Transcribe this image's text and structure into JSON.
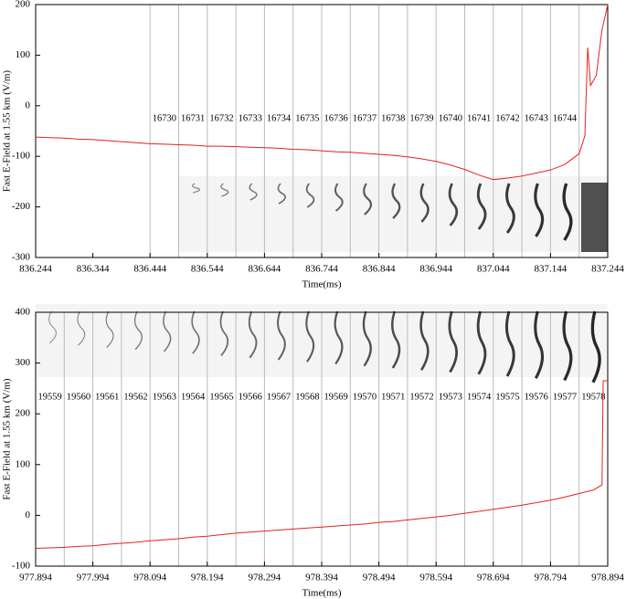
{
  "chart_data": [
    {
      "type": "line",
      "color": "#e8201c",
      "x_label": "Time(ms)",
      "y_label": "Fast E-Field at 1.55 km (V/m)",
      "xlim": [
        836.244,
        837.244
      ],
      "ylim": [
        -300,
        200
      ],
      "xticks": [
        836.244,
        836.344,
        836.444,
        836.544,
        836.644,
        836.744,
        836.844,
        836.944,
        837.044,
        837.144,
        837.244
      ],
      "yticks": [
        -300,
        -200,
        -100,
        0,
        100,
        200
      ],
      "frame_lines": [
        836.444,
        836.494,
        836.544,
        836.594,
        836.644,
        836.694,
        836.744,
        836.794,
        836.844,
        836.894,
        836.944,
        836.994,
        837.044,
        837.094,
        837.144,
        837.194
      ],
      "frame_labels": [
        "16730",
        "16731",
        "16732",
        "16733",
        "16734",
        "16735",
        "16736",
        "16737",
        "16738",
        "16739",
        "16740",
        "16741",
        "16742",
        "16743",
        "16744"
      ],
      "x": [
        836.244,
        836.269,
        836.294,
        836.319,
        836.344,
        836.369,
        836.394,
        836.419,
        836.444,
        836.469,
        836.494,
        836.519,
        836.544,
        836.569,
        836.594,
        836.619,
        836.644,
        836.669,
        836.694,
        836.719,
        836.744,
        836.769,
        836.794,
        836.819,
        836.844,
        836.869,
        836.894,
        836.919,
        836.944,
        836.969,
        836.994,
        837.019,
        837.044,
        837.069,
        837.094,
        837.119,
        837.144,
        837.169,
        837.194,
        837.204,
        837.209,
        837.214,
        837.224,
        837.234,
        837.244
      ],
      "values": [
        -62,
        -63,
        -64,
        -66,
        -67,
        -69,
        -71,
        -73,
        -75,
        -76,
        -77,
        -78,
        -80,
        -80,
        -81,
        -82,
        -83,
        -84,
        -86,
        -87,
        -89,
        -91,
        -92,
        -94,
        -96,
        -98,
        -101,
        -105,
        -110,
        -117,
        -126,
        -137,
        -146,
        -143,
        -139,
        -133,
        -127,
        -116,
        -95,
        -60,
        115,
        40,
        60,
        150,
        200
      ]
    },
    {
      "type": "line",
      "color": "#e8201c",
      "x_label": "Time(ms)",
      "y_label": "Fast E-Field at 1.55 km (V/m)",
      "xlim": [
        977.894,
        978.894
      ],
      "ylim": [
        -100,
        400
      ],
      "xticks": [
        977.894,
        977.994,
        978.094,
        978.194,
        978.294,
        978.394,
        978.494,
        978.594,
        978.694,
        978.794,
        978.894
      ],
      "yticks": [
        -100,
        0,
        100,
        200,
        300,
        400
      ],
      "frame_lines": [
        977.894,
        977.944,
        977.994,
        978.044,
        978.094,
        978.144,
        978.194,
        978.244,
        978.294,
        978.344,
        978.394,
        978.444,
        978.494,
        978.544,
        978.594,
        978.644,
        978.694,
        978.744,
        978.794,
        978.844,
        978.894
      ],
      "frame_labels": [
        "19559",
        "19560",
        "19561",
        "19562",
        "19563",
        "19564",
        "19565",
        "19566",
        "19567",
        "19568",
        "19569",
        "19570",
        "19571",
        "19572",
        "19573",
        "19574",
        "19575",
        "19576",
        "19577",
        "19578"
      ],
      "x": [
        977.894,
        977.919,
        977.944,
        977.969,
        977.994,
        978.019,
        978.044,
        978.069,
        978.094,
        978.119,
        978.144,
        978.169,
        978.194,
        978.219,
        978.244,
        978.269,
        978.294,
        978.319,
        978.344,
        978.369,
        978.394,
        978.419,
        978.444,
        978.469,
        978.494,
        978.519,
        978.544,
        978.569,
        978.594,
        978.619,
        978.644,
        978.669,
        978.694,
        978.719,
        978.744,
        978.769,
        978.794,
        978.819,
        978.844,
        978.869,
        978.884,
        978.886,
        978.894
      ],
      "values": [
        -65,
        -64,
        -63,
        -61,
        -60,
        -57,
        -55,
        -53,
        -50,
        -48,
        -46,
        -43,
        -41,
        -38,
        -35,
        -33,
        -31,
        -29,
        -27,
        -25,
        -23,
        -21,
        -19,
        -17,
        -14,
        -12,
        -9,
        -6,
        -3,
        0,
        4,
        8,
        12,
        16,
        20,
        25,
        30,
        36,
        43,
        50,
        60,
        265,
        265
      ]
    }
  ]
}
